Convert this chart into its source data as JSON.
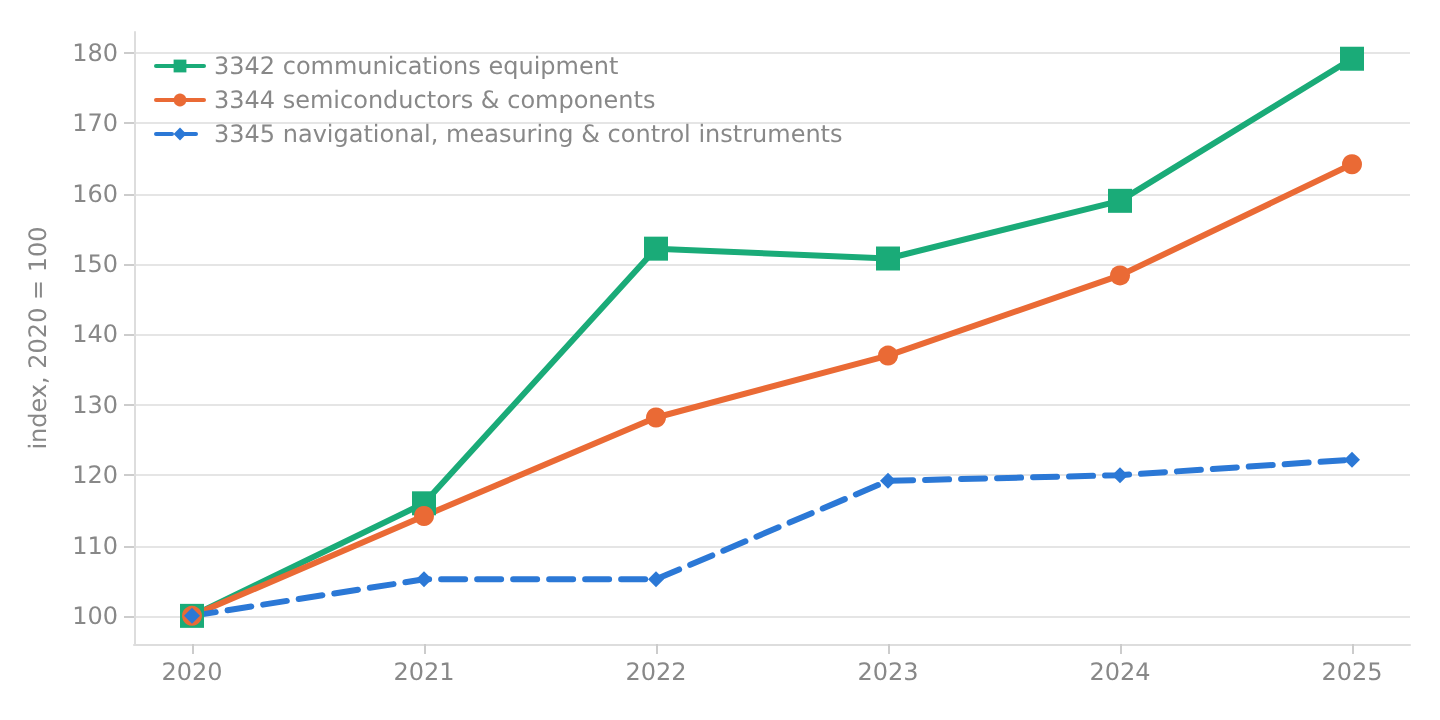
{
  "chart_data": {
    "type": "line",
    "ylabel": "index, 2020 = 100",
    "x": [
      2020,
      2021,
      2022,
      2023,
      2024,
      2025
    ],
    "xlim": [
      2019.75,
      2025.25
    ],
    "xticks": [
      2020,
      2021,
      2022,
      2023,
      2024,
      2025
    ],
    "ylim": [
      96,
      183
    ],
    "yticks": [
      100,
      110,
      120,
      130,
      140,
      150,
      160,
      170,
      180
    ],
    "grid": "y",
    "legend": "top left",
    "series": [
      {
        "name": "3342 communications equipment",
        "color": "#1aab78",
        "marker": "square",
        "line_style": "solid",
        "values": [
          100,
          116,
          152.2,
          150.8,
          159,
          179.2
        ]
      },
      {
        "name": "3344 semiconductors & components",
        "color": "#ea6a35",
        "marker": "circle",
        "line_style": "solid",
        "values": [
          100,
          114.2,
          128.2,
          137,
          148.4,
          164.2
        ]
      },
      {
        "name": "3345 navigational, measuring & control instruments",
        "color": "#2b78d6",
        "marker": "diamond",
        "line_style": "dashed",
        "values": [
          100,
          105.2,
          105.2,
          119.2,
          120,
          122.2
        ]
      }
    ]
  }
}
